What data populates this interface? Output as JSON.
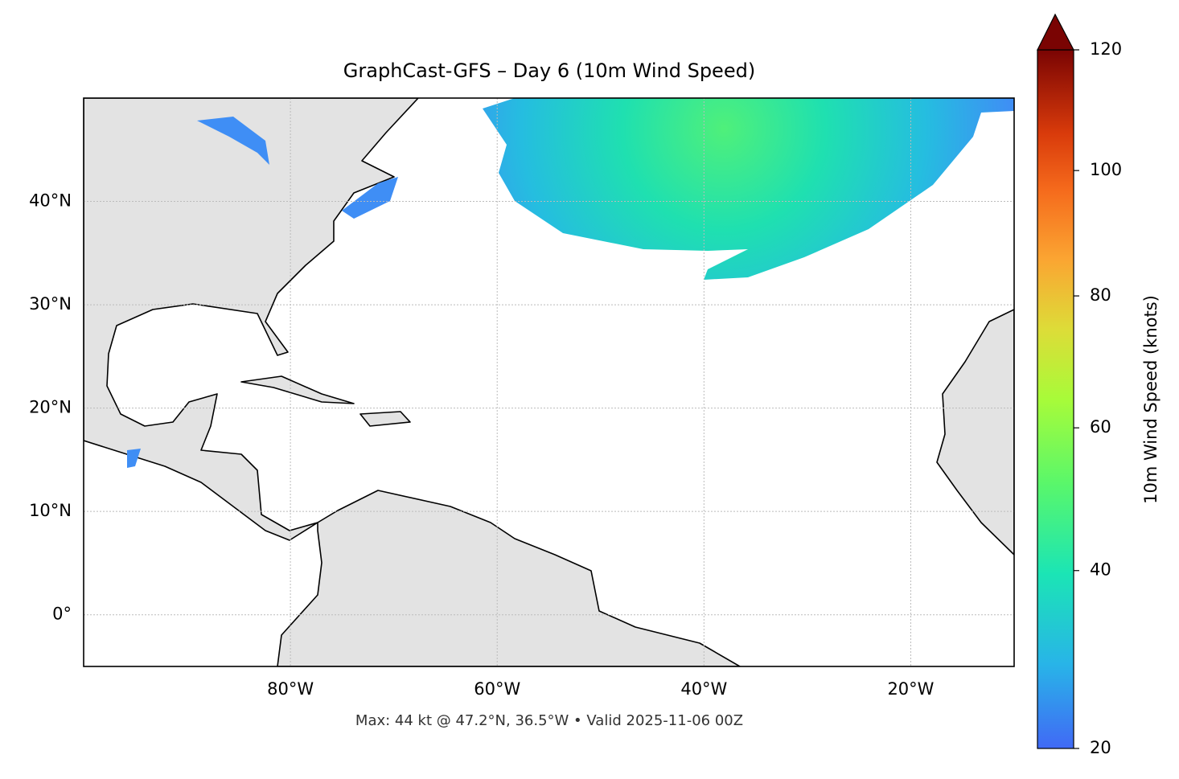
{
  "chart_data": {
    "type": "map",
    "title": "GraphCast-GFS – Day 6 (10m Wind Speed)",
    "annotation": "Max: 44 kt @ 47.2°N, 36.5°W • Valid 2025-11-06 00Z",
    "xlim": [
      -100,
      -10
    ],
    "ylim": [
      -5,
      50
    ],
    "xticks": [
      {
        "value": -80,
        "label": "80°W"
      },
      {
        "value": -60,
        "label": "60°W"
      },
      {
        "value": -40,
        "label": "40°W"
      },
      {
        "value": -20,
        "label": "20°W"
      }
    ],
    "yticks": [
      {
        "value": 0,
        "label": "0°"
      },
      {
        "value": 10,
        "label": "10°N"
      },
      {
        "value": 20,
        "label": "20°N"
      },
      {
        "value": 30,
        "label": "30°N"
      },
      {
        "value": 40,
        "label": "40°N"
      }
    ],
    "grid": true,
    "colorbar": {
      "label": "10m Wind Speed (knots)",
      "colormap": "turbo",
      "lim": [
        20,
        120
      ],
      "ticks": [
        20,
        40,
        60,
        80,
        100,
        120
      ],
      "gamma": 0.85,
      "extend": "max"
    }
  }
}
